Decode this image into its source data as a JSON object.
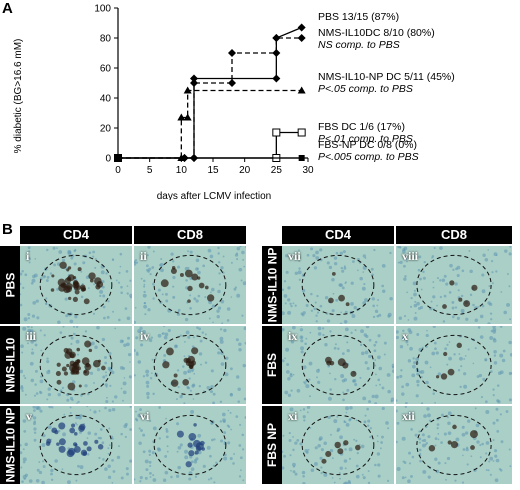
{
  "panel_a": {
    "letter": "A",
    "chart_data": {
      "type": "line",
      "xlabel": "days after LCMV infection",
      "ylabel": "% diabetic (BG>16.6 mM)",
      "xlim": [
        0,
        30
      ],
      "ylim": [
        0,
        100
      ],
      "xticks": [
        "0",
        "5",
        "10",
        "15",
        "20",
        "25",
        "30"
      ],
      "yticks": [
        "0",
        "20",
        "40",
        "60",
        "80",
        "100"
      ],
      "series": [
        {
          "name": "PBS 13/15 (87%)",
          "note": "",
          "style": "solid",
          "marker": "diamond",
          "x": [
            0,
            10.5,
            12,
            12,
            25,
            25,
            29
          ],
          "y": [
            0,
            0,
            0,
            53,
            53,
            80,
            87
          ]
        },
        {
          "name": "NMS-IL10DC 8/10 (80%)",
          "note": "NS comp. to PBS",
          "style": "dashed",
          "marker": "diamond",
          "x": [
            0,
            10.5,
            12,
            12,
            18,
            18,
            25,
            25,
            29
          ],
          "y": [
            0,
            0,
            0,
            50,
            50,
            70,
            70,
            80,
            80
          ]
        },
        {
          "name": "NMS-IL10-NP DC 5/11 (45%)",
          "note": "P<.05 comp. to PBS",
          "style": "dashed",
          "marker": "triangle",
          "x": [
            0,
            10,
            10,
            11,
            11,
            29
          ],
          "y": [
            0,
            0,
            27,
            27,
            45,
            45
          ]
        },
        {
          "name": "FBS DC 1/6 (17%)",
          "note": "P<.01 comp. to PBS",
          "style": "solid",
          "marker": "open-square",
          "x": [
            0,
            25,
            25,
            29
          ],
          "y": [
            0,
            0,
            17,
            17
          ]
        },
        {
          "name": "FBS-NP DC 0/8 (0%)",
          "note": "P<.005 comp. to PBS",
          "style": "solid",
          "marker": "square",
          "x": [
            0,
            29
          ],
          "y": [
            0,
            0
          ]
        }
      ]
    }
  },
  "panel_b": {
    "letter": "B",
    "left_headers": [
      "CD4",
      "CD8"
    ],
    "right_headers": [
      "CD4",
      "CD8"
    ],
    "left_rows": [
      {
        "label": "PBS",
        "tiles": [
          "i",
          "ii"
        ]
      },
      {
        "label": "NMS-IL10",
        "tiles": [
          "iii",
          "iv"
        ]
      },
      {
        "label": "NMS-IL10 NP",
        "tiles": [
          "v",
          "vi"
        ]
      }
    ],
    "right_rows": [
      {
        "label": "NMS-IL10 NP",
        "tiles": [
          "vii",
          "viii"
        ]
      },
      {
        "label": "FBS",
        "tiles": [
          "ix",
          "x"
        ]
      },
      {
        "label": "FBS NP",
        "tiles": [
          "xi",
          "xii"
        ]
      }
    ],
    "colors": {
      "background": "#a9cfc6",
      "cells": "#5e95b2",
      "stain": "#2b1a10"
    }
  }
}
